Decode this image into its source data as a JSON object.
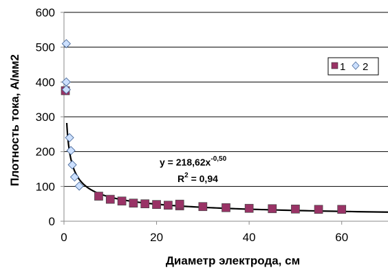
{
  "chart_data": {
    "type": "scatter",
    "xlabel": "Диаметр электрода, см",
    "ylabel": "Плотность тока, А/мм2",
    "xlim": [
      0,
      70
    ],
    "ylim": [
      0,
      600
    ],
    "x_ticks": [
      "0",
      "20",
      "40",
      "60"
    ],
    "y_ticks": [
      "0",
      "100",
      "200",
      "300",
      "400",
      "500",
      "600"
    ],
    "grid": "horizontal",
    "legend_position": "top-right",
    "series": [
      {
        "name": "1",
        "marker": "square",
        "color": "#993366",
        "points": [
          {
            "x": 0.3,
            "y": 375
          },
          {
            "x": 7.5,
            "y": 72
          },
          {
            "x": 10,
            "y": 63
          },
          {
            "x": 12.5,
            "y": 58
          },
          {
            "x": 15,
            "y": 52
          },
          {
            "x": 17.5,
            "y": 50
          },
          {
            "x": 20,
            "y": 48
          },
          {
            "x": 22.5,
            "y": 46
          },
          {
            "x": 25,
            "y": 44
          },
          {
            "x": 25,
            "y": 49
          },
          {
            "x": 30,
            "y": 42
          },
          {
            "x": 35,
            "y": 39
          },
          {
            "x": 40,
            "y": 37
          },
          {
            "x": 45,
            "y": 36
          },
          {
            "x": 50,
            "y": 35
          },
          {
            "x": 55,
            "y": 34
          },
          {
            "x": 60,
            "y": 34
          }
        ]
      },
      {
        "name": "2",
        "marker": "diamond",
        "color": "#cce0ff",
        "points": [
          {
            "x": 0.5,
            "y": 510
          },
          {
            "x": 0.5,
            "y": 400
          },
          {
            "x": 0.5,
            "y": 378
          },
          {
            "x": 1.2,
            "y": 240
          },
          {
            "x": 1.5,
            "y": 203
          },
          {
            "x": 1.8,
            "y": 162
          },
          {
            "x": 2.3,
            "y": 127
          },
          {
            "x": 3.3,
            "y": 101
          }
        ]
      }
    ],
    "trendline": {
      "type": "power",
      "a": 218.62,
      "b": -0.5,
      "x_range": [
        0.6,
        70
      ],
      "color": "#000000"
    },
    "annotation": {
      "equation_base": "y = 218,62x",
      "equation_exp": "-0,50",
      "r2_base": "R",
      "r2_exp": "2",
      "r2_rest": " = 0,94"
    }
  }
}
